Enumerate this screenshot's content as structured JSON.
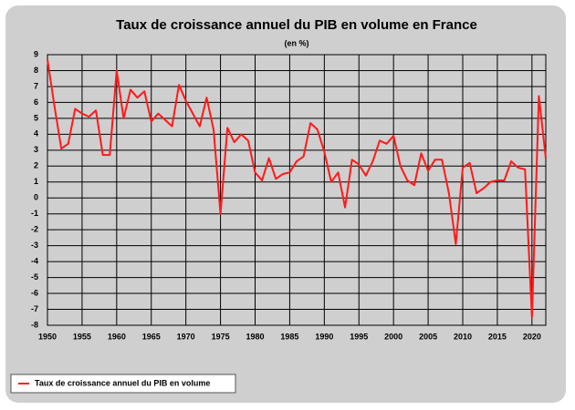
{
  "chart_data": {
    "type": "line",
    "title": "Taux de croissance annuel du PIB en volume en France",
    "subtitle": "(en %)",
    "x": [
      1950,
      1951,
      1952,
      1953,
      1954,
      1955,
      1956,
      1957,
      1958,
      1959,
      1960,
      1961,
      1962,
      1963,
      1964,
      1965,
      1966,
      1967,
      1968,
      1969,
      1970,
      1971,
      1972,
      1973,
      1974,
      1975,
      1976,
      1977,
      1978,
      1979,
      1980,
      1981,
      1982,
      1983,
      1984,
      1985,
      1986,
      1987,
      1988,
      1989,
      1990,
      1991,
      1992,
      1993,
      1994,
      1995,
      1996,
      1997,
      1998,
      1999,
      2000,
      2001,
      2002,
      2003,
      2004,
      2005,
      2006,
      2007,
      2008,
      2009,
      2010,
      2011,
      2012,
      2013,
      2014,
      2015,
      2016,
      2017,
      2018,
      2019,
      2020,
      2021,
      2022
    ],
    "series": [
      {
        "name": "Taux de croissance annuel du PIB en volume",
        "color": "#ff1a1a",
        "values": [
          8.7,
          5.8,
          3.1,
          3.4,
          5.6,
          5.3,
          5.1,
          5.5,
          2.7,
          2.7,
          8.0,
          5.0,
          6.8,
          6.3,
          6.7,
          4.8,
          5.3,
          4.9,
          4.5,
          7.1,
          6.1,
          5.3,
          4.5,
          6.3,
          4.3,
          -1.0,
          4.4,
          3.5,
          4.0,
          3.6,
          1.6,
          1.1,
          2.5,
          1.2,
          1.5,
          1.6,
          2.3,
          2.6,
          4.7,
          4.3,
          2.9,
          1.0,
          1.6,
          -0.6,
          2.4,
          2.1,
          1.4,
          2.3,
          3.6,
          3.4,
          3.9,
          2.0,
          1.1,
          0.8,
          2.8,
          1.7,
          2.4,
          2.4,
          0.3,
          -2.9,
          1.9,
          2.2,
          0.3,
          0.6,
          1.0,
          1.1,
          1.1,
          2.3,
          1.9,
          1.8,
          -7.5,
          6.4,
          2.5
        ]
      }
    ],
    "xlim": [
      1950,
      2022
    ],
    "xticks": [
      1950,
      1955,
      1960,
      1965,
      1970,
      1975,
      1980,
      1985,
      1990,
      1995,
      2000,
      2005,
      2010,
      2015,
      2020
    ],
    "ylim": [
      -8,
      9
    ],
    "yticks": [
      -8,
      -7,
      -6,
      -5,
      -4,
      -3,
      -2,
      -1,
      0,
      1,
      2,
      3,
      4,
      5,
      6,
      7,
      8,
      9
    ],
    "grid": true,
    "legend": "bottom-left"
  }
}
